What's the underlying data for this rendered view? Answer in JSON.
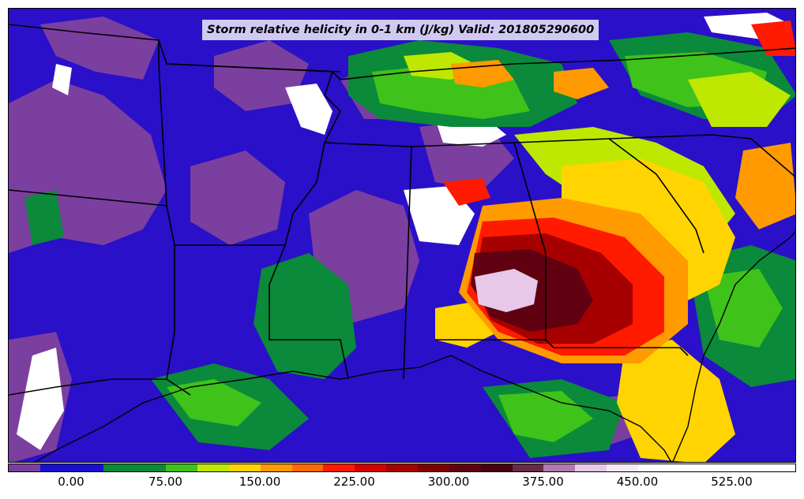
{
  "title": "Storm relative helicity in 0-1 km (J/kg) Valid: 201805290600",
  "colorbar": {
    "colors": [
      "#7b3fa0",
      "#1a0fd0",
      "#1a0fd0",
      "#0a8a3a",
      "#0a8a3a",
      "#3fc21a",
      "#bfe800",
      "#ffd400",
      "#ff9a00",
      "#ff6a00",
      "#ff1a00",
      "#d40000",
      "#a60000",
      "#800000",
      "#600010",
      "#4a0010",
      "#6a2a4a",
      "#b07ab0",
      "#e8c8e8",
      "#f8e8f8",
      "#ffffff",
      "#ffffff",
      "#ffffff",
      "#ffffff",
      "#ffffff"
    ],
    "ticks": [
      "0.00",
      "75.00",
      "150.00",
      "225.00",
      "300.00",
      "375.00",
      "450.00",
      "525.00"
    ]
  },
  "map": {
    "region": "Southeastern United States",
    "field": "storm relative helicity",
    "background_color": "#2a10c8"
  }
}
